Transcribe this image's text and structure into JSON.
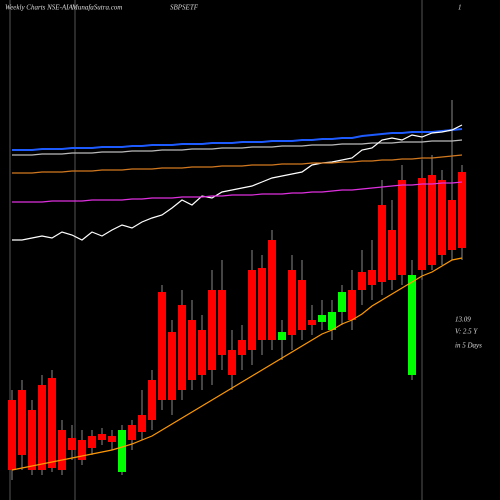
{
  "chart_data": {
    "type": "candlestick",
    "title": "SBPSETF",
    "header_left": "Weekly Charts NSE-AIA",
    "site": "MunafaSutra.com",
    "header_right": "1",
    "notes": [
      "13.09",
      "V: 2.5 Y",
      "in 5 Days"
    ],
    "ylim": [
      0,
      500
    ],
    "up_color": "#00ff00",
    "down_color": "#ff0000",
    "open": [
      100,
      110,
      90,
      115,
      122,
      70,
      62,
      60,
      64,
      66,
      64,
      28,
      75,
      85,
      120,
      208,
      168,
      195,
      180,
      170,
      210,
      210,
      150,
      160,
      230,
      232,
      260,
      160,
      230,
      220,
      180,
      178,
      170,
      188,
      210,
      228,
      230,
      295,
      270,
      320,
      125,
      322,
      325,
      320,
      300,
      328
    ],
    "high": [
      110,
      120,
      100,
      125,
      130,
      80,
      75,
      70,
      70,
      72,
      70,
      75,
      80,
      110,
      130,
      215,
      180,
      210,
      200,
      185,
      230,
      240,
      170,
      175,
      250,
      245,
      270,
      180,
      245,
      240,
      195,
      200,
      200,
      215,
      230,
      250,
      260,
      320,
      300,
      335,
      240,
      340,
      345,
      330,
      400,
      335
    ],
    "low": [
      20,
      30,
      25,
      25,
      28,
      25,
      40,
      35,
      45,
      55,
      50,
      25,
      50,
      60,
      70,
      90,
      85,
      100,
      110,
      110,
      115,
      130,
      110,
      130,
      135,
      145,
      150,
      140,
      150,
      160,
      165,
      170,
      160,
      175,
      170,
      195,
      200,
      205,
      210,
      215,
      120,
      220,
      230,
      235,
      240,
      240
    ],
    "close": [
      30,
      45,
      30,
      30,
      32,
      30,
      50,
      40,
      52,
      60,
      58,
      70,
      60,
      68,
      80,
      100,
      100,
      110,
      120,
      125,
      130,
      145,
      125,
      145,
      150,
      160,
      160,
      168,
      165,
      170,
      175,
      185,
      188,
      208,
      180,
      210,
      215,
      218,
      220,
      225,
      225,
      230,
      235,
      245,
      250,
      252
    ],
    "series": [
      {
        "color": "#1e5bff",
        "values": [
          350,
          350,
          350,
          351,
          351,
          351,
          352,
          352,
          352,
          353,
          353,
          353,
          354,
          354,
          355,
          355,
          355,
          356,
          356,
          356,
          357,
          357,
          357,
          358,
          358,
          358,
          359,
          359,
          359,
          360,
          360,
          361,
          361,
          362,
          362,
          364,
          365,
          366,
          367,
          367,
          368,
          368,
          368,
          369,
          370,
          371
        ]
      },
      {
        "color": "#bbbbbb",
        "values": [
          345,
          345,
          345,
          346,
          346,
          346,
          347,
          347,
          347,
          348,
          348,
          348,
          349,
          349,
          349,
          350,
          350,
          350,
          351,
          351,
          351,
          352,
          352,
          352,
          353,
          353,
          353,
          354,
          354,
          354,
          355,
          355,
          355,
          356,
          356,
          356,
          357,
          357,
          357,
          358,
          358,
          358,
          359,
          359,
          359,
          360
        ]
      },
      {
        "color": "#ffffff",
        "values": [
          260,
          260,
          262,
          264,
          262,
          268,
          265,
          260,
          268,
          264,
          270,
          275,
          272,
          278,
          282,
          285,
          292,
          300,
          295,
          304,
          302,
          308,
          310,
          312,
          314,
          318,
          322,
          324,
          326,
          328,
          335,
          337,
          338,
          340,
          342,
          350,
          352,
          360,
          362,
          360,
          365,
          363,
          367,
          368,
          370,
          375
        ]
      },
      {
        "color": "#d2781e",
        "values": [
          327,
          327,
          327,
          328,
          328,
          328,
          329,
          329,
          329,
          330,
          330,
          330,
          331,
          331,
          331,
          332,
          332,
          332,
          333,
          333,
          333,
          334,
          334,
          334,
          335,
          335,
          335,
          336,
          336,
          336,
          337,
          337,
          337,
          338,
          338,
          339,
          339,
          340,
          340,
          341,
          341,
          342,
          342,
          343,
          344,
          345
        ]
      },
      {
        "color": "#e030e0",
        "values": [
          298,
          298,
          298,
          298,
          299,
          299,
          299,
          299,
          300,
          300,
          300,
          300,
          301,
          301,
          302,
          302,
          302,
          303,
          303,
          303,
          304,
          304,
          305,
          305,
          305,
          306,
          306,
          306,
          307,
          307,
          308,
          308,
          309,
          310,
          310,
          311,
          312,
          313,
          314,
          315,
          315,
          316,
          316,
          317,
          317,
          318
        ]
      },
      {
        "color": "#ff9900",
        "values": [
          30,
          32,
          34,
          36,
          38,
          40,
          42,
          44,
          46,
          48,
          50,
          53,
          56,
          60,
          64,
          70,
          76,
          82,
          88,
          94,
          100,
          106,
          112,
          118,
          124,
          130,
          136,
          142,
          148,
          154,
          160,
          166,
          170,
          176,
          180,
          186,
          194,
          200,
          206,
          212,
          218,
          224,
          228,
          234,
          240,
          242
        ]
      }
    ]
  }
}
